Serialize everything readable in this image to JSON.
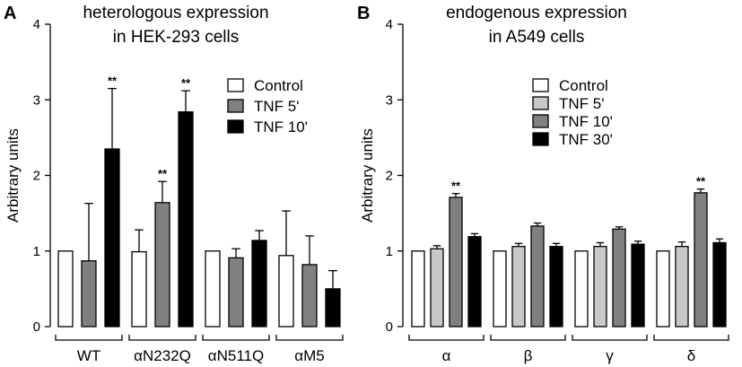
{
  "chart_data": [
    {
      "panel_label": "A",
      "type": "bar",
      "title_lines": [
        "heterologous expression",
        "in HEK-293 cells"
      ],
      "ylabel": "Arbitrary units",
      "ylim": [
        0,
        4
      ],
      "yticks": [
        "0",
        "1",
        "2",
        "3",
        "4"
      ],
      "categories": [
        "WT",
        "αN232Q",
        "αN511Q",
        "αM5"
      ],
      "series": [
        {
          "name": "Control",
          "color": "#ffffff",
          "values": [
            1.0,
            0.99,
            1.0,
            0.94
          ],
          "errors": [
            0,
            0.29,
            0,
            0.59
          ],
          "sig": [
            "",
            "",
            "",
            ""
          ]
        },
        {
          "name": "TNF 5'",
          "color": "#808080",
          "values": [
            0.87,
            1.64,
            0.91,
            0.82
          ],
          "errors": [
            0.76,
            0.28,
            0.12,
            0.38
          ],
          "sig": [
            "",
            "**",
            "",
            ""
          ]
        },
        {
          "name": "TNF 10'",
          "color": "#000000",
          "values": [
            2.35,
            2.84,
            1.14,
            0.5
          ],
          "errors": [
            0.8,
            0.28,
            0.13,
            0.24
          ],
          "sig": [
            "**",
            "**",
            "",
            ""
          ]
        }
      ]
    },
    {
      "panel_label": "B",
      "type": "bar",
      "title_lines": [
        "endogenous expression",
        "in A549 cells"
      ],
      "ylabel": "Arbitrary units",
      "ylim": [
        0,
        4
      ],
      "yticks": [
        "0",
        "1",
        "2",
        "3",
        "4"
      ],
      "categories": [
        "α",
        "β",
        "γ",
        "δ"
      ],
      "series": [
        {
          "name": "Control",
          "color": "#ffffff",
          "values": [
            1.0,
            1.0,
            1.0,
            1.0
          ],
          "errors": [
            0,
            0,
            0,
            0
          ],
          "sig": [
            "",
            "",
            "",
            ""
          ]
        },
        {
          "name": "TNF 5'",
          "color": "#c8c8c8",
          "values": [
            1.03,
            1.06,
            1.06,
            1.06
          ],
          "errors": [
            0.04,
            0.04,
            0.05,
            0.06
          ],
          "sig": [
            "",
            "",
            "",
            ""
          ]
        },
        {
          "name": "TNF 10'",
          "color": "#808080",
          "values": [
            1.71,
            1.33,
            1.29,
            1.77
          ],
          "errors": [
            0.05,
            0.04,
            0.03,
            0.05
          ],
          "sig": [
            "**",
            "",
            "",
            "**"
          ]
        },
        {
          "name": "TNF 30'",
          "color": "#000000",
          "values": [
            1.19,
            1.06,
            1.09,
            1.11
          ],
          "errors": [
            0.04,
            0.04,
            0.04,
            0.05
          ],
          "sig": [
            "",
            "",
            "",
            ""
          ]
        }
      ]
    }
  ]
}
